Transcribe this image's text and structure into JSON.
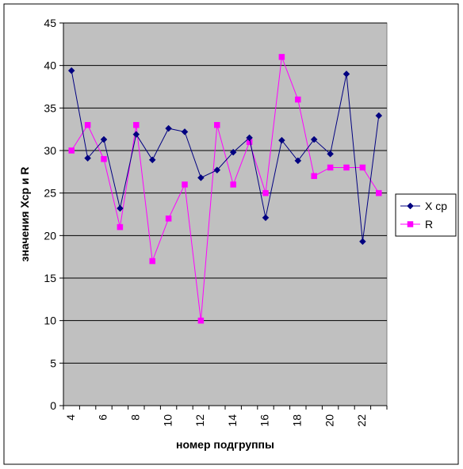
{
  "chart_data": {
    "type": "line",
    "title": "",
    "xlabel": "номер подгруппы",
    "ylabel": "значения Хср и R",
    "x": [
      4,
      5,
      6,
      7,
      8,
      9,
      10,
      11,
      12,
      13,
      14,
      15,
      16,
      17,
      18,
      19,
      20,
      21,
      22,
      23
    ],
    "x_tick_labels": [
      "4",
      "6",
      "8",
      "10",
      "12",
      "14",
      "16",
      "18",
      "20",
      "22"
    ],
    "y_tick_labels": [
      "0",
      "5",
      "10",
      "15",
      "20",
      "25",
      "30",
      "35",
      "40",
      "45"
    ],
    "ylim": [
      0,
      45
    ],
    "grid": "horizontal",
    "plot_background": "#c0c0c0",
    "legend_position": "right",
    "series": [
      {
        "name": "X ср",
        "color": "#000080",
        "marker": "diamond",
        "values": [
          39.4,
          29.1,
          31.3,
          23.2,
          31.9,
          28.9,
          32.6,
          32.2,
          26.8,
          27.7,
          29.8,
          31.5,
          22.1,
          31.2,
          28.8,
          31.3,
          29.6,
          39.0,
          19.3,
          34.1
        ]
      },
      {
        "name": "R",
        "color": "#ff00ff",
        "marker": "square",
        "values": [
          30,
          33,
          29,
          21,
          33,
          17,
          22,
          26,
          10,
          33,
          26,
          31,
          25,
          41,
          36,
          27,
          28,
          28,
          28,
          25
        ]
      }
    ]
  }
}
